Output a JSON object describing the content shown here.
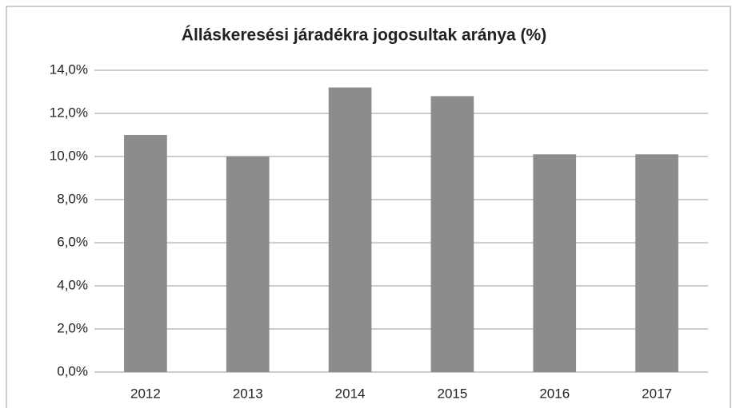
{
  "chart_data": {
    "type": "bar",
    "title": "Álláskeresési járadékra jogosultak aránya (%)",
    "categories": [
      "2012",
      "2013",
      "2014",
      "2015",
      "2016",
      "2017"
    ],
    "values": [
      11.0,
      10.0,
      13.2,
      12.8,
      10.1,
      10.1
    ],
    "color": "#8c8c8c",
    "ylim": [
      0,
      14
    ],
    "yticks": [
      {
        "value": 0,
        "label": "0,0%"
      },
      {
        "value": 2,
        "label": "2,0%"
      },
      {
        "value": 4,
        "label": "4,0%"
      },
      {
        "value": 6,
        "label": "6,0%"
      },
      {
        "value": 8,
        "label": "8,0%"
      },
      {
        "value": 10,
        "label": "10,0%"
      },
      {
        "value": 12,
        "label": "12,0%"
      },
      {
        "value": 14,
        "label": "14,0%"
      }
    ],
    "grid": true
  }
}
